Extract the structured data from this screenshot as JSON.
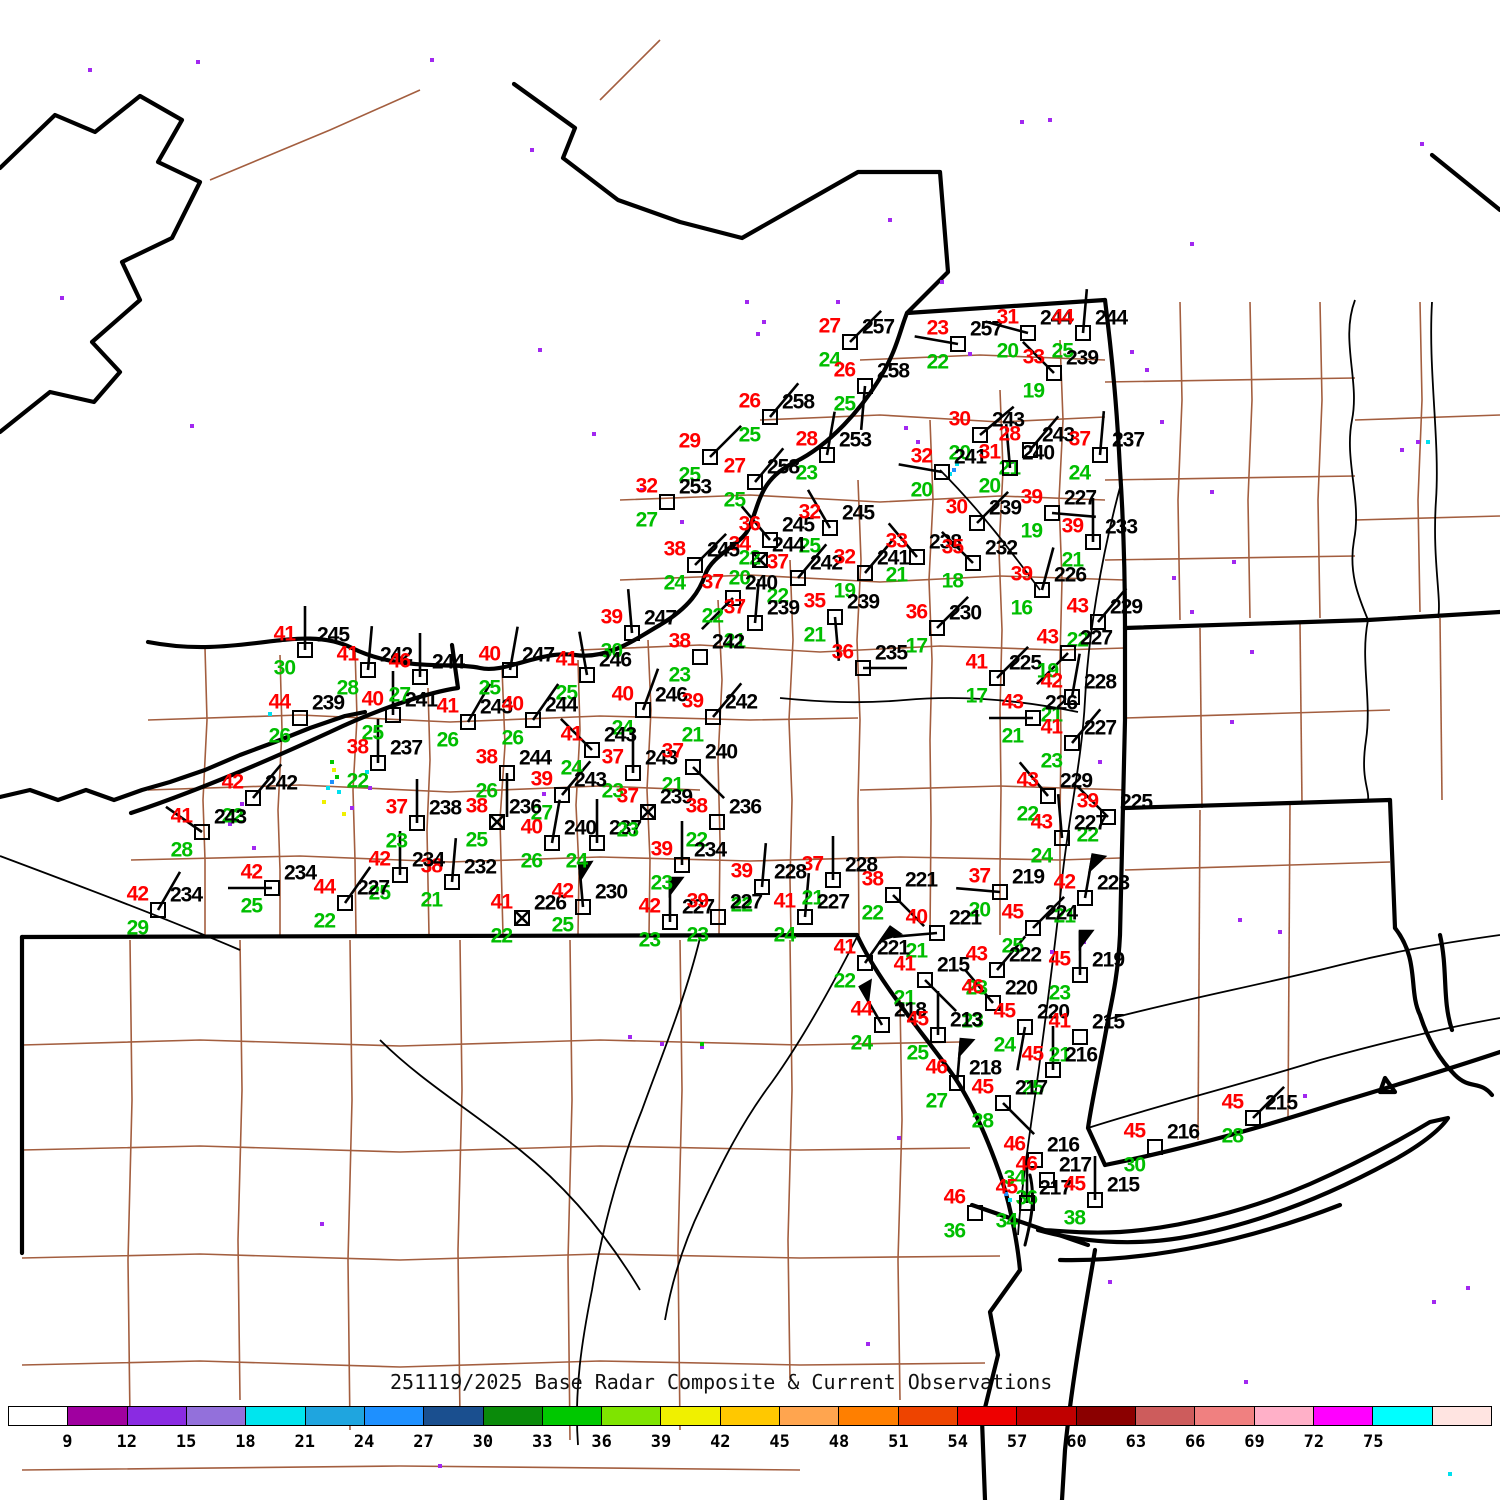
{
  "title": "251119/2025 Base Radar Composite & Current Observations",
  "palette": {
    "temperature": "#FF0000",
    "dewpoint": "#00BE00",
    "pressure": "#000000",
    "county_line": "#A35E3F",
    "state_line": "#000000",
    "radar_purple": "#A128F0",
    "radar_cyan": "#00E0EE"
  },
  "colorbar": {
    "tick_labels": [
      9,
      12,
      15,
      18,
      21,
      24,
      27,
      30,
      33,
      36,
      39,
      42,
      45,
      48,
      51,
      54,
      57,
      60,
      63,
      66,
      69,
      72,
      75
    ],
    "colors": [
      "#FFFFFF",
      "#A000A0",
      "#8A2BE2",
      "#9370DB",
      "#00E5EE",
      "#1FA5DF",
      "#1E90FF",
      "#1A4F8F",
      "#0A8A0A",
      "#00C800",
      "#7FE400",
      "#F0F000",
      "#FFC800",
      "#FFA54F",
      "#FF7F00",
      "#EE4400",
      "#EE0000",
      "#C00000",
      "#8B0000",
      "#CD5C5C",
      "#F08080",
      "#FFB0C8",
      "#FF00FF",
      "#00FFFF",
      "#FFE4E1"
    ]
  },
  "station_fields": [
    "x",
    "y",
    "temp",
    "dewpoint",
    "pressure",
    "wind_dir",
    "flag"
  ],
  "stations": [
    [
      850,
      342,
      "27",
      "24",
      "257",
      45,
      0
    ],
    [
      958,
      344,
      "23",
      "22",
      "257",
      280,
      0
    ],
    [
      1028,
      333,
      "31",
      "20",
      "244",
      285,
      0
    ],
    [
      1083,
      333,
      "44",
      "25",
      "244",
      5,
      0
    ],
    [
      1054,
      373,
      "33",
      "19",
      "239",
      315,
      0
    ],
    [
      865,
      386,
      "26",
      "25",
      "258",
      185,
      0
    ],
    [
      770,
      417,
      "26",
      "25",
      "258",
      40,
      0
    ],
    [
      710,
      457,
      "29",
      "25",
      "",
      45,
      0
    ],
    [
      827,
      455,
      "28",
      "23",
      "253",
      10,
      0
    ],
    [
      755,
      482,
      "27",
      "25",
      "258",
      40,
      0
    ],
    [
      667,
      502,
      "32",
      "27",
      "253",
      null,
      0
    ],
    [
      980,
      435,
      "30",
      "20",
      "243",
      50,
      0
    ],
    [
      1030,
      450,
      "28",
      "21",
      "243",
      40,
      0
    ],
    [
      942,
      472,
      "32",
      "20",
      "241",
      280,
      0
    ],
    [
      1010,
      468,
      "31",
      "20",
      "240",
      355,
      0
    ],
    [
      1100,
      455,
      "37",
      "24",
      "237",
      5,
      0
    ],
    [
      977,
      523,
      "30",
      "",
      "239",
      45,
      0
    ],
    [
      1052,
      513,
      "39",
      "19",
      "227",
      95,
      0
    ],
    [
      1093,
      542,
      "39",
      "21",
      "233",
      0,
      0
    ],
    [
      770,
      540,
      "36",
      "22",
      "245",
      320,
      0
    ],
    [
      830,
      528,
      "32",
      "25",
      "245",
      330,
      0
    ],
    [
      760,
      560,
      "34",
      "20",
      "244",
      "X",
      0
    ],
    [
      695,
      565,
      "38",
      "24",
      "245",
      45,
      0
    ],
    [
      798,
      578,
      "37",
      "22",
      "242",
      40,
      0
    ],
    [
      865,
      573,
      "32",
      "19",
      "241",
      40,
      0
    ],
    [
      917,
      557,
      "33",
      "21",
      "238",
      320,
      0
    ],
    [
      973,
      563,
      "35",
      "18",
      "232",
      315,
      0
    ],
    [
      1042,
      590,
      "39",
      "16",
      "226",
      15,
      0
    ],
    [
      733,
      598,
      "37",
      "22",
      "240",
      225,
      0
    ],
    [
      835,
      617,
      "35",
      "21",
      "239",
      175,
      0
    ],
    [
      937,
      628,
      "36",
      "17",
      "230",
      45,
      0
    ],
    [
      632,
      633,
      "39",
      "30",
      "247",
      355,
      0
    ],
    [
      755,
      623,
      "37",
      "21",
      "239",
      5,
      0
    ],
    [
      700,
      657,
      "38",
      "23",
      "242",
      null,
      0
    ],
    [
      863,
      668,
      "36",
      "",
      "235",
      90,
      0
    ],
    [
      1098,
      622,
      "43",
      "22",
      "229",
      40,
      0
    ],
    [
      997,
      678,
      "41",
      "17",
      "225",
      45,
      0
    ],
    [
      1068,
      653,
      "43",
      "19",
      "227",
      225,
      0
    ],
    [
      587,
      675,
      "41",
      "25",
      "246",
      350,
      0
    ],
    [
      305,
      650,
      "41",
      "30",
      "245",
      0,
      0
    ],
    [
      368,
      670,
      "41",
      "28",
      "242",
      5,
      0
    ],
    [
      420,
      677,
      "46",
      "27",
      "244",
      0,
      0
    ],
    [
      510,
      670,
      "40",
      "25",
      "247",
      10,
      0
    ],
    [
      300,
      718,
      "44",
      "26",
      "239",
      null,
      0
    ],
    [
      393,
      715,
      "40",
      "25",
      "241",
      0,
      0
    ],
    [
      468,
      722,
      "41",
      "26",
      "243",
      30,
      0
    ],
    [
      533,
      720,
      "40",
      "26",
      "244",
      35,
      0
    ],
    [
      643,
      710,
      "40",
      "24",
      "246",
      20,
      0
    ],
    [
      713,
      717,
      "39",
      "21",
      "242",
      40,
      0
    ],
    [
      1072,
      697,
      "42",
      "21",
      "228",
      10,
      0
    ],
    [
      1033,
      718,
      "43",
      "21",
      "226",
      270,
      0
    ],
    [
      1072,
      743,
      "41",
      "23",
      "227",
      40,
      0
    ],
    [
      378,
      763,
      "38",
      "22",
      "237",
      0,
      0
    ],
    [
      507,
      773,
      "38",
      "26",
      "244",
      180,
      0
    ],
    [
      592,
      750,
      "41",
      "24",
      "243",
      315,
      0
    ],
    [
      633,
      773,
      "37",
      "23",
      "243",
      0,
      0
    ],
    [
      693,
      767,
      "37",
      "21",
      "240",
      135,
      0
    ],
    [
      562,
      795,
      "39",
      "27",
      "243",
      40,
      0
    ],
    [
      1048,
      796,
      "43",
      "22",
      "229",
      320,
      0
    ],
    [
      1108,
      817,
      "39",
      "22",
      "225",
      315,
      0
    ],
    [
      1062,
      838,
      "43",
      "24",
      "227",
      355,
      0
    ],
    [
      417,
      823,
      "37",
      "23",
      "238",
      0,
      0
    ],
    [
      497,
      822,
      "38",
      "25",
      "236",
      "X",
      0
    ],
    [
      452,
      882,
      "38",
      "21",
      "232",
      5,
      0
    ],
    [
      400,
      875,
      "42",
      "25",
      "234",
      0,
      0
    ],
    [
      833,
      880,
      "37",
      "21",
      "228",
      0,
      0
    ],
    [
      762,
      887,
      "39",
      "22",
      "228",
      5,
      0
    ],
    [
      893,
      895,
      "38",
      "22",
      "221",
      135,
      0
    ],
    [
      1000,
      892,
      "37",
      "20",
      "219",
      275,
      0
    ],
    [
      1085,
      898,
      "42",
      "21",
      "223",
      10,
      1
    ],
    [
      253,
      798,
      "42",
      "22",
      "242",
      40,
      0
    ],
    [
      202,
      832,
      "41",
      "28",
      "243",
      305,
      0
    ],
    [
      158,
      910,
      "42",
      "29",
      "234",
      30,
      0
    ],
    [
      272,
      888,
      "42",
      "25",
      "234",
      270,
      0
    ],
    [
      345,
      903,
      "44",
      "22",
      "227",
      35,
      0
    ],
    [
      552,
      843,
      "40",
      "26",
      "240",
      10,
      0
    ],
    [
      597,
      843,
      "",
      "24",
      "237",
      0,
      0
    ],
    [
      648,
      812,
      "37",
      "23",
      "239",
      "X",
      0
    ],
    [
      717,
      822,
      "38",
      "22",
      "236",
      null,
      0
    ],
    [
      937,
      933,
      "40",
      "21",
      "221",
      265,
      0
    ],
    [
      522,
      918,
      "41",
      "22",
      "226",
      "X",
      0
    ],
    [
      583,
      907,
      "42",
      "25",
      "230",
      355,
      1
    ],
    [
      682,
      865,
      "39",
      "23",
      "234",
      0,
      0
    ],
    [
      670,
      922,
      "42",
      "23",
      "227",
      0,
      1
    ],
    [
      718,
      917,
      "39",
      "23",
      "227",
      null,
      0
    ],
    [
      805,
      917,
      "41",
      "24",
      "227",
      5,
      0
    ],
    [
      1033,
      928,
      "45",
      "25",
      "224",
      45,
      0
    ],
    [
      865,
      963,
      "41",
      "22",
      "221",
      35,
      1
    ],
    [
      925,
      980,
      "41",
      "21",
      "215",
      135,
      0
    ],
    [
      997,
      970,
      "43",
      "23",
      "222",
      40,
      0
    ],
    [
      1080,
      975,
      "45",
      "23",
      "219",
      0,
      1
    ],
    [
      993,
      1003,
      "46",
      "23",
      "220",
      320,
      0
    ],
    [
      1025,
      1027,
      "45",
      "24",
      "220",
      190,
      0
    ],
    [
      882,
      1025,
      "44",
      "24",
      "218",
      330,
      1
    ],
    [
      938,
      1035,
      "45",
      "25",
      "213",
      0,
      0
    ],
    [
      1080,
      1037,
      "41",
      "21",
      "215",
      null,
      0
    ],
    [
      1053,
      1070,
      "45",
      "25",
      "216",
      0,
      0
    ],
    [
      957,
      1083,
      "46",
      "27",
      "218",
      5,
      1
    ],
    [
      1003,
      1103,
      "45",
      "28",
      "217",
      135,
      0
    ],
    [
      1035,
      1160,
      "46",
      "34",
      "216",
      null,
      0
    ],
    [
      1047,
      1180,
      "46",
      "36",
      "217",
      null,
      0
    ],
    [
      1027,
      1203,
      "45",
      "34",
      "217",
      0,
      0
    ],
    [
      975,
      1213,
      "46",
      "36",
      "",
      null,
      0
    ],
    [
      1095,
      1200,
      "45",
      "38",
      "215",
      0,
      0
    ],
    [
      1155,
      1147,
      "45",
      "30",
      "216",
      null,
      0
    ],
    [
      1253,
      1118,
      "45",
      "28",
      "215",
      45,
      0
    ]
  ]
}
